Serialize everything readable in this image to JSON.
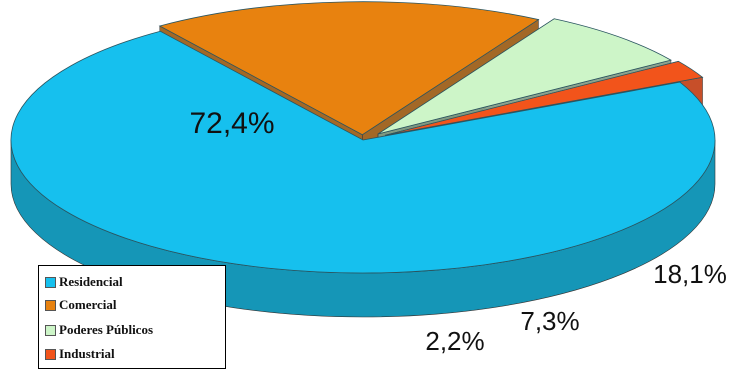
{
  "chart_data": {
    "type": "pie",
    "title": "",
    "categories": [
      "Residencial",
      "Comercial",
      "Poderes Públicos",
      "Industrial"
    ],
    "values": [
      72.4,
      18.1,
      7.3,
      2.2
    ],
    "data_labels": [
      "72,4%",
      "18,1%",
      "7,3%",
      "2,2%"
    ],
    "colors": [
      "#16c0ee",
      "#e8820f",
      "#cdf5c8",
      "#f2541b"
    ],
    "side_colors": [
      "#1596b7",
      "#9a580f",
      "#7f9a82",
      "#c23d12"
    ],
    "exploded": [
      "Comercial",
      "Poderes Públicos",
      "Industrial"
    ],
    "style": "3d-exploded",
    "legend": {
      "position": "bottom-left"
    }
  }
}
